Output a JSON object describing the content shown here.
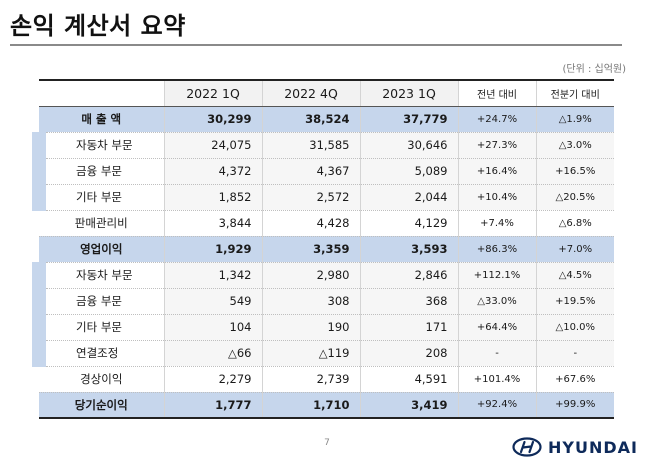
{
  "title": "손익 계산서 요약",
  "unit_note": "(단위 : 십억원)",
  "header": {
    "col_2022_1q": "2022 1Q",
    "col_2022_4q": "2022 4Q",
    "col_2023_1q": "2023 1Q",
    "col_yoy": "전년 대비",
    "col_qoq": "전분기 대비"
  },
  "rows": [
    {
      "label": "매 출 액",
      "q1_2022": "30,299",
      "q4_2022": "38,524",
      "q1_2023": "37,779",
      "yoy": "+24.7%",
      "qoq": "△1.9%"
    },
    {
      "label": "자동차 부문",
      "q1_2022": "24,075",
      "q4_2022": "31,585",
      "q1_2023": "30,646",
      "yoy": "+27.3%",
      "qoq": "△3.0%"
    },
    {
      "label": "금융 부문",
      "q1_2022": "4,372",
      "q4_2022": "4,367",
      "q1_2023": "5,089",
      "yoy": "+16.4%",
      "qoq": "+16.5%"
    },
    {
      "label": "기타 부문",
      "q1_2022": "1,852",
      "q4_2022": "2,572",
      "q1_2023": "2,044",
      "yoy": "+10.4%",
      "qoq": "△20.5%"
    },
    {
      "label": "판매관리비",
      "q1_2022": "3,844",
      "q4_2022": "4,428",
      "q1_2023": "4,129",
      "yoy": "+7.4%",
      "qoq": "△6.8%"
    },
    {
      "label": "영업이익",
      "q1_2022": "1,929",
      "q4_2022": "3,359",
      "q1_2023": "3,593",
      "yoy": "+86.3%",
      "qoq": "+7.0%"
    },
    {
      "label": "자동차 부문",
      "q1_2022": "1,342",
      "q4_2022": "2,980",
      "q1_2023": "2,846",
      "yoy": "+112.1%",
      "qoq": "△4.5%"
    },
    {
      "label": "금융 부문",
      "q1_2022": "549",
      "q4_2022": "308",
      "q1_2023": "368",
      "yoy": "△33.0%",
      "qoq": "+19.5%"
    },
    {
      "label": "기타 부문",
      "q1_2022": "104",
      "q4_2022": "190",
      "q1_2023": "171",
      "yoy": "+64.4%",
      "qoq": "△10.0%"
    },
    {
      "label": "연결조정",
      "q1_2022": "△66",
      "q4_2022": "△119",
      "q1_2023": "208",
      "yoy": "-",
      "qoq": "-"
    },
    {
      "label": "경상이익",
      "q1_2022": "2,279",
      "q4_2022": "2,739",
      "q1_2023": "4,591",
      "yoy": "+101.4%",
      "qoq": "+67.6%"
    },
    {
      "label": "당기순이익",
      "q1_2022": "1,777",
      "q4_2022": "1,710",
      "q1_2023": "3,419",
      "yoy": "+92.4%",
      "qoq": "+99.9%"
    }
  ],
  "page_number": "7",
  "logo_text": "HYUNDAI",
  "colors": {
    "highlight": "#c6d6ec",
    "brand": "#0e2a5a"
  }
}
